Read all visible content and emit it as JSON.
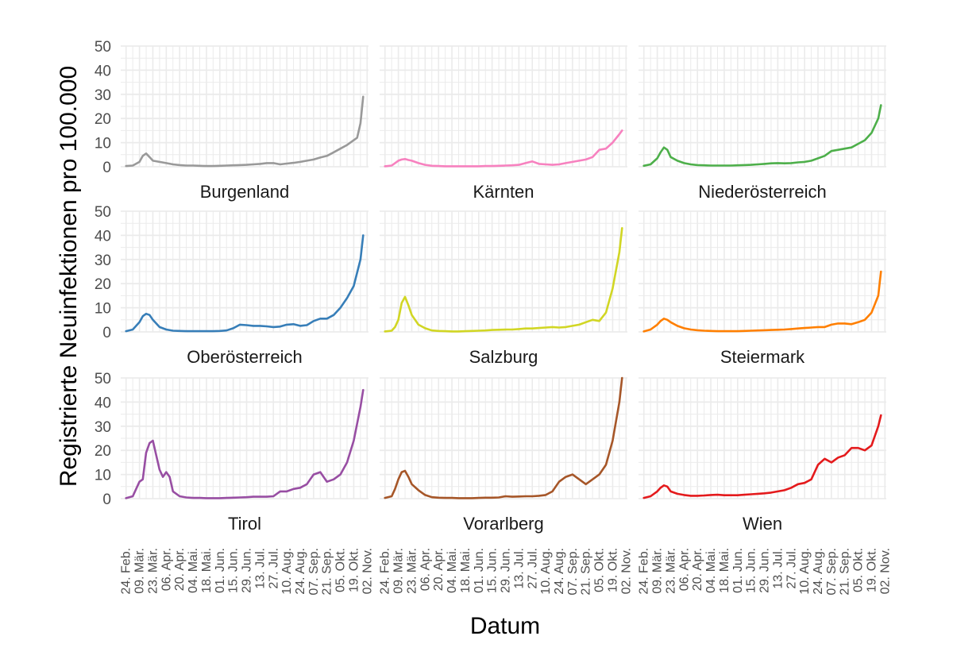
{
  "chart_data": {
    "type": "line",
    "layout": "facet_wrap 3x3",
    "xlabel": "Datum",
    "ylabel": "Registrierte Neuinfektionen pro 100.000",
    "ylim": [
      0,
      50
    ],
    "yticks": [
      0,
      10,
      20,
      30,
      40,
      50
    ],
    "x_tick_labels": [
      "24. Feb.",
      "09. Mär.",
      "23. Mär.",
      "06. Apr.",
      "20. Apr.",
      "04. Mai.",
      "18. Mai.",
      "01. Jun.",
      "15. Jun.",
      "29. Jun.",
      "13. Jul.",
      "27. Jul.",
      "10. Aug.",
      "24. Aug.",
      "07. Sep.",
      "21. Sep.",
      "05. Okt.",
      "19. Okt.",
      "02. Nov."
    ],
    "x_unit": "weeks since 24. Feb.",
    "panels": [
      {
        "title": "Burgenland",
        "color": "#999999",
        "x": [
          0,
          1,
          2,
          2.5,
          3,
          3.5,
          4,
          5,
          6,
          7,
          8,
          9,
          10,
          11,
          12,
          13,
          14,
          15,
          16,
          17,
          18,
          19,
          20,
          21,
          22,
          23,
          24,
          25,
          26,
          27,
          28,
          29,
          30,
          31,
          32,
          33,
          34,
          34.5,
          35,
          35.4
        ],
        "y": [
          0.3,
          0.5,
          2,
          4.5,
          5.5,
          4,
          2.5,
          2,
          1.5,
          1,
          0.7,
          0.5,
          0.5,
          0.4,
          0.3,
          0.3,
          0.4,
          0.5,
          0.6,
          0.7,
          0.8,
          1,
          1.2,
          1.5,
          1.5,
          1,
          1.3,
          1.6,
          2,
          2.5,
          3,
          3.8,
          4.5,
          6,
          7.5,
          9,
          11,
          12,
          18,
          29
        ]
      },
      {
        "title": "Kärnten",
        "color": "#F781BF",
        "x": [
          0,
          1,
          2,
          2.5,
          3,
          3.5,
          4,
          5,
          6,
          7,
          8,
          9,
          10,
          11,
          12,
          13,
          14,
          15,
          16,
          17,
          18,
          19,
          20,
          21,
          22,
          23,
          24,
          25,
          26,
          27,
          28,
          29,
          30,
          31,
          32,
          33,
          34,
          35,
          35.4
        ],
        "y": [
          0.2,
          0.5,
          2.5,
          3,
          3.2,
          2.8,
          2.5,
          1.5,
          0.8,
          0.4,
          0.3,
          0.2,
          0.2,
          0.2,
          0.2,
          0.2,
          0.2,
          0.3,
          0.3,
          0.4,
          0.5,
          0.6,
          0.8,
          1.5,
          2.2,
          1.2,
          1,
          0.8,
          1,
          1.5,
          2,
          2.5,
          3,
          4,
          7,
          7.5,
          10,
          13.5,
          15
        ]
      },
      {
        "title": "Niederösterreich",
        "color": "#4DAF4A",
        "x": [
          0,
          1,
          2,
          2.5,
          3,
          3.5,
          4,
          5,
          6,
          7,
          8,
          9,
          10,
          11,
          12,
          13,
          14,
          15,
          16,
          17,
          18,
          19,
          20,
          21,
          22,
          23,
          24,
          25,
          26,
          27,
          28,
          29,
          30,
          31,
          32,
          33,
          34,
          35,
          35.4
        ],
        "y": [
          0.4,
          1,
          3.5,
          6,
          8,
          7,
          4,
          2.5,
          1.5,
          1,
          0.7,
          0.6,
          0.5,
          0.5,
          0.5,
          0.5,
          0.6,
          0.7,
          0.8,
          1,
          1.2,
          1.4,
          1.5,
          1.4,
          1.5,
          1.8,
          2,
          2.5,
          3.5,
          4.5,
          6.5,
          7,
          7.5,
          8,
          9.5,
          11,
          14,
          20,
          25.5
        ]
      },
      {
        "title": "Oberösterreich",
        "color": "#377EB8",
        "x": [
          0,
          1,
          2,
          2.5,
          3,
          3.5,
          4,
          5,
          6,
          7,
          8,
          9,
          10,
          11,
          12,
          13,
          14,
          15,
          16,
          17,
          18,
          19,
          20,
          21,
          22,
          23,
          24,
          25,
          26,
          27,
          28,
          29,
          30,
          31,
          32,
          33,
          34,
          35,
          35.4
        ],
        "y": [
          0.3,
          1,
          4,
          6.5,
          7.5,
          7,
          5,
          2,
          1,
          0.5,
          0.4,
          0.3,
          0.3,
          0.3,
          0.3,
          0.3,
          0.4,
          0.6,
          1.5,
          3,
          2.8,
          2.5,
          2.5,
          2.3,
          2,
          2.2,
          3,
          3.2,
          2.5,
          2.8,
          4.5,
          5.5,
          5.5,
          7,
          10,
          14,
          19,
          30,
          40
        ]
      },
      {
        "title": "Salzburg",
        "color": "#D1D624",
        "x": [
          0,
          1,
          1.5,
          2,
          2.5,
          3,
          3.5,
          4,
          5,
          6,
          7,
          8,
          9,
          10,
          11,
          12,
          13,
          14,
          15,
          16,
          17,
          18,
          19,
          20,
          21,
          22,
          23,
          24,
          25,
          26,
          27,
          28,
          29,
          30,
          31,
          32,
          33,
          34,
          35,
          35.4
        ],
        "y": [
          0.2,
          0.5,
          2,
          5,
          12,
          14.5,
          11,
          7,
          3,
          1.5,
          0.6,
          0.4,
          0.3,
          0.2,
          0.2,
          0.3,
          0.4,
          0.5,
          0.6,
          0.8,
          0.9,
          1,
          1,
          1.2,
          1.4,
          1.4,
          1.6,
          1.8,
          2,
          1.8,
          2,
          2.5,
          3,
          4,
          5,
          4.5,
          8,
          18,
          33,
          43
        ]
      },
      {
        "title": "Steiermark",
        "color": "#FF7F00",
        "x": [
          0,
          1,
          2,
          2.5,
          3,
          3.5,
          4,
          5,
          6,
          7,
          8,
          9,
          10,
          11,
          12,
          13,
          14,
          15,
          16,
          17,
          18,
          19,
          20,
          21,
          22,
          23,
          24,
          25,
          26,
          27,
          28,
          29,
          30,
          31,
          32,
          33,
          34,
          35,
          35.4
        ],
        "y": [
          0.2,
          1,
          3,
          4.5,
          5.5,
          5,
          4,
          2.5,
          1.5,
          1,
          0.7,
          0.5,
          0.4,
          0.3,
          0.3,
          0.3,
          0.3,
          0.4,
          0.5,
          0.6,
          0.7,
          0.8,
          0.9,
          1,
          1.2,
          1.4,
          1.6,
          1.8,
          2,
          2,
          3,
          3.5,
          3.5,
          3.2,
          4,
          5,
          8,
          15,
          25
        ]
      },
      {
        "title": "Tirol",
        "color": "#984EA3",
        "x": [
          0,
          1,
          1.5,
          2,
          2.5,
          3,
          3.5,
          4,
          4.5,
          5,
          5.5,
          6,
          6.5,
          7,
          8,
          9,
          10,
          11,
          12,
          13,
          14,
          15,
          16,
          17,
          18,
          19,
          20,
          21,
          22,
          23,
          24,
          25,
          26,
          27,
          27.5,
          28,
          29,
          30,
          31,
          32,
          33,
          34,
          35,
          35.4
        ],
        "y": [
          0.2,
          1,
          4,
          7,
          8,
          19,
          23,
          24,
          18,
          12,
          9,
          11,
          9,
          3,
          1,
          0.5,
          0.3,
          0.3,
          0.2,
          0.2,
          0.2,
          0.3,
          0.4,
          0.5,
          0.6,
          0.8,
          0.8,
          0.8,
          1,
          3,
          3,
          4,
          4.5,
          6,
          8,
          10,
          11,
          7,
          8,
          10,
          15,
          24,
          38,
          45
        ]
      },
      {
        "title": "Vorarlberg",
        "color": "#A65628",
        "x": [
          0,
          1,
          1.5,
          2,
          2.5,
          3,
          3.5,
          4,
          5,
          6,
          7,
          8,
          9,
          10,
          11,
          12,
          13,
          14,
          15,
          16,
          17,
          18,
          19,
          20,
          21,
          22,
          23,
          24,
          25,
          26,
          27,
          28,
          29,
          30,
          31,
          32,
          33,
          34,
          35,
          35.4
        ],
        "y": [
          0.3,
          1,
          4,
          8,
          11,
          11.5,
          9,
          6,
          3.5,
          1.5,
          0.6,
          0.4,
          0.3,
          0.3,
          0.2,
          0.2,
          0.2,
          0.3,
          0.4,
          0.4,
          0.5,
          1,
          0.8,
          0.9,
          1,
          1,
          1.2,
          1.5,
          3,
          7,
          9,
          10,
          8,
          6,
          8,
          10,
          14,
          24,
          40,
          50
        ]
      },
      {
        "title": "Wien",
        "color": "#E41A1C",
        "x": [
          0,
          1,
          2,
          2.5,
          3,
          3.5,
          4,
          5,
          6,
          7,
          8,
          9,
          10,
          11,
          12,
          13,
          14,
          15,
          16,
          17,
          18,
          19,
          20,
          21,
          22,
          23,
          24,
          25,
          26,
          27,
          28,
          29,
          30,
          31,
          32,
          33,
          34,
          35,
          35.4
        ],
        "y": [
          0.3,
          1,
          3,
          4.5,
          5.5,
          5,
          3,
          2,
          1.5,
          1.2,
          1.2,
          1.3,
          1.5,
          1.6,
          1.4,
          1.4,
          1.4,
          1.6,
          1.8,
          2,
          2.2,
          2.5,
          3,
          3.5,
          4.5,
          6,
          6.5,
          8,
          14,
          16.5,
          15,
          17,
          18,
          21,
          21,
          20,
          22,
          30,
          34.5
        ]
      }
    ]
  }
}
